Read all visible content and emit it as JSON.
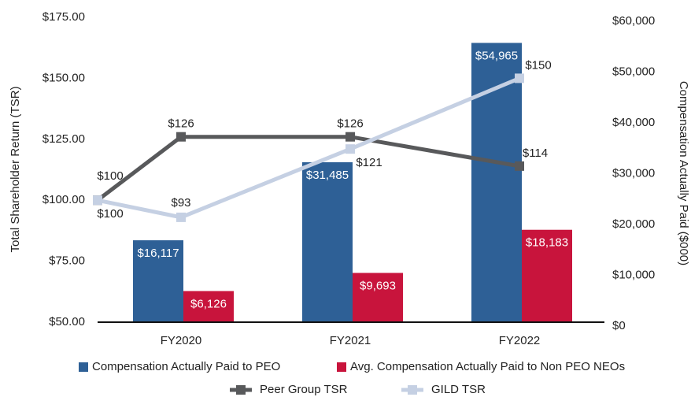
{
  "chart_data": {
    "type": "bar-line",
    "ylabel": "Total Shareholder Return (TSR)",
    "y2label": "Compensation Actually Paid ($000)",
    "categories": [
      null,
      "FY2020",
      "FY2021",
      "FY2022"
    ],
    "ylim": [
      50,
      175
    ],
    "yticks": [
      {
        "value": 50,
        "label": "$50.00"
      },
      {
        "value": 75,
        "label": "$75.00"
      },
      {
        "value": 100,
        "label": "$100.00"
      },
      {
        "value": 125,
        "label": "$125.00"
      },
      {
        "value": 150,
        "label": "$150.00"
      },
      {
        "value": 175,
        "label": "$175.00"
      }
    ],
    "y2lim": [
      0,
      60000
    ],
    "y2ticks": [
      {
        "value": 0,
        "label": "$0"
      },
      {
        "value": 10000,
        "label": "$10,000"
      },
      {
        "value": 20000,
        "label": "$20,000"
      },
      {
        "value": 30000,
        "label": "$30,000"
      },
      {
        "value": 40000,
        "label": "$40,000"
      },
      {
        "value": 50000,
        "label": "$50,000"
      },
      {
        "value": 60000,
        "label": "$60,000"
      }
    ],
    "series": [
      {
        "name": "Compensation Actually Paid to PEO",
        "type": "bar",
        "axis": "y2",
        "color": "#2e6096",
        "values": [
          null,
          16117,
          31485,
          54965
        ],
        "value_labels": [
          null,
          "$16,117",
          "$31,485",
          "$54,965"
        ]
      },
      {
        "name": "Avg. Compensation Actually Paid to Non PEO NEOs",
        "type": "bar",
        "axis": "y2",
        "color": "#c8143c",
        "values": [
          null,
          6126,
          9693,
          18183
        ],
        "value_labels": [
          null,
          "$6,126",
          "$9,693",
          "$18,183"
        ]
      },
      {
        "name": "Peer Group TSR",
        "type": "line",
        "color": "#58595b",
        "values": [
          100,
          126,
          126,
          114
        ],
        "value_labels": [
          "$100",
          "$126",
          "$126",
          "$114"
        ]
      },
      {
        "name": "GILD TSR",
        "type": "line",
        "color": "#c5d0e3",
        "values": [
          100,
          93,
          121,
          150
        ],
        "value_labels": [
          "$100",
          "$93",
          "$121",
          "$150"
        ]
      }
    ]
  }
}
